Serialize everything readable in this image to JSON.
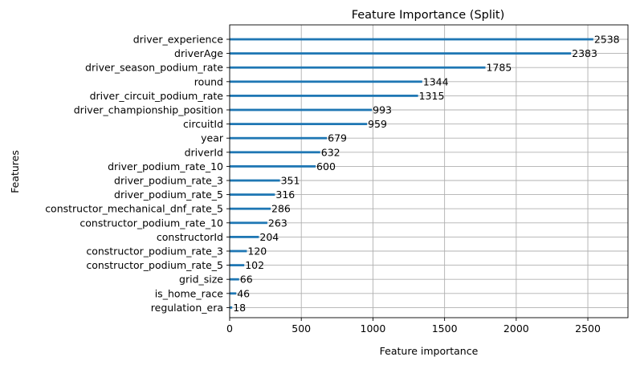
{
  "chart_data": {
    "type": "bar",
    "orientation": "horizontal",
    "title": "Feature Importance (Split)",
    "xlabel": "Feature importance",
    "ylabel": "Features",
    "xlim": [
      0,
      2780
    ],
    "xticks": [
      0,
      500,
      1000,
      1500,
      2000,
      2500
    ],
    "grid": true,
    "bar_color": "#1f77b4",
    "grid_color": "#b0b0b0",
    "categories": [
      "driver_experience",
      "driverAge",
      "driver_season_podium_rate",
      "round",
      "driver_circuit_podium_rate",
      "driver_championship_position",
      "circuitId",
      "year",
      "driverId",
      "driver_podium_rate_10",
      "driver_podium_rate_3",
      "driver_podium_rate_5",
      "constructor_mechanical_dnf_rate_5",
      "constructor_podium_rate_10",
      "constructorId",
      "constructor_podium_rate_3",
      "constructor_podium_rate_5",
      "grid_size",
      "is_home_race",
      "regulation_era"
    ],
    "values": [
      2538,
      2383,
      1785,
      1344,
      1315,
      993,
      959,
      679,
      632,
      600,
      351,
      316,
      286,
      263,
      204,
      120,
      102,
      66,
      46,
      18
    ]
  }
}
